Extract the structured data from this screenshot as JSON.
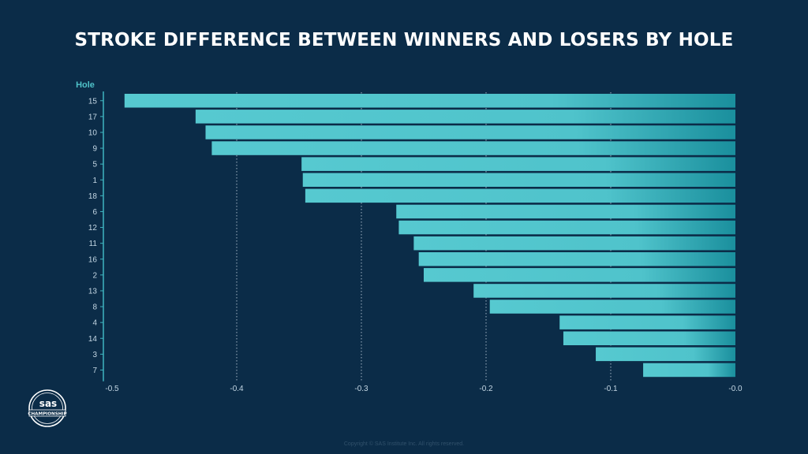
{
  "title": "STROKE DIFFERENCE BETWEEN WINNERS AND LOSERS BY HOLE",
  "copyright": "Copyright © SAS Institute Inc. All rights reserved.",
  "logo": {
    "text_top": "sas",
    "text_band": "CHAMPIONSHIP"
  },
  "colors": {
    "background": "#0b2c48",
    "bar_light": "#56c9d0",
    "bar_dark": "#1a8f9d",
    "axis": "#3fb4bf",
    "tick_text": "#c4d7e4",
    "hole_label": "#4fc2c9"
  },
  "chart_data": {
    "type": "bar",
    "orientation": "horizontal",
    "title": "STROKE DIFFERENCE BETWEEN WINNERS AND LOSERS BY HOLE",
    "ylabel": "Hole",
    "xlabel": "",
    "categories": [
      "15",
      "17",
      "10",
      "9",
      "5",
      "1",
      "18",
      "6",
      "12",
      "11",
      "16",
      "2",
      "13",
      "8",
      "4",
      "14",
      "3",
      "7"
    ],
    "values": [
      -0.49,
      -0.433,
      -0.425,
      -0.42,
      -0.348,
      -0.347,
      -0.345,
      -0.272,
      -0.27,
      -0.258,
      -0.254,
      -0.25,
      -0.21,
      -0.197,
      -0.141,
      -0.138,
      -0.112,
      -0.074
    ],
    "xlim": [
      -0.5,
      0.0
    ],
    "xticks": [
      "-0.5",
      "-0.4",
      "-0.3",
      "-0.2",
      "-0.1",
      "-0.0"
    ],
    "xtick_values": [
      -0.5,
      -0.4,
      -0.3,
      -0.2,
      -0.1,
      0.0
    ],
    "grid": "vertical dotted"
  }
}
